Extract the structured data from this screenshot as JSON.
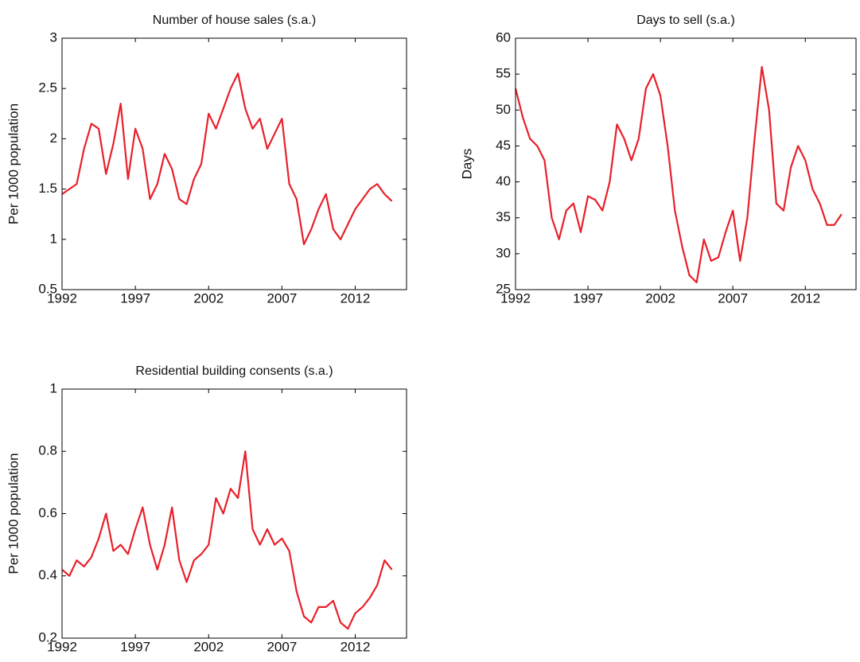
{
  "chart_data": [
    {
      "type": "line",
      "title": "Number of house sales (s.a.)",
      "y_label": "Per 1000 population",
      "color": "#e8202a",
      "x": [
        1992,
        1992.5,
        1993,
        1993.5,
        1994,
        1994.5,
        1995,
        1995.5,
        1996,
        1996.5,
        1997,
        1997.5,
        1998,
        1998.5,
        1999,
        1999.5,
        2000,
        2000.5,
        2001,
        2001.5,
        2002,
        2002.5,
        2003,
        2003.5,
        2004,
        2004.5,
        2005,
        2005.5,
        2006,
        2006.5,
        2007,
        2007.5,
        2008,
        2008.5,
        2009,
        2009.5,
        2010,
        2010.5,
        2011,
        2011.5,
        2012,
        2012.5,
        2013,
        2013.5,
        2014,
        2014.5
      ],
      "values": [
        1.45,
        1.5,
        1.55,
        1.9,
        2.15,
        2.1,
        1.65,
        1.95,
        2.35,
        1.6,
        2.1,
        1.9,
        1.4,
        1.55,
        1.85,
        1.7,
        1.4,
        1.35,
        1.6,
        1.75,
        2.25,
        2.1,
        2.3,
        2.5,
        2.65,
        2.3,
        2.1,
        2.2,
        1.9,
        2.05,
        2.2,
        1.55,
        1.4,
        0.95,
        1.1,
        1.3,
        1.45,
        1.1,
        1.0,
        1.15,
        1.3,
        1.4,
        1.5,
        1.55,
        1.45,
        1.38
      ],
      "xlim": [
        1992,
        2015.5
      ],
      "ylim": [
        0.5,
        3
      ],
      "xticks": [
        1992,
        1997,
        2002,
        2007,
        2012
      ],
      "yticks": [
        0.5,
        1,
        1.5,
        2,
        2.5,
        3
      ]
    },
    {
      "type": "line",
      "title": "Days to sell (s.a.)",
      "y_label": "Days",
      "color": "#e8202a",
      "x": [
        1992,
        1992.5,
        1993,
        1993.5,
        1994,
        1994.5,
        1995,
        1995.5,
        1996,
        1996.5,
        1997,
        1997.5,
        1998,
        1998.5,
        1999,
        1999.5,
        2000,
        2000.5,
        2001,
        2001.5,
        2002,
        2002.5,
        2003,
        2003.5,
        2004,
        2004.5,
        2005,
        2005.5,
        2006,
        2006.5,
        2007,
        2007.5,
        2008,
        2008.5,
        2009,
        2009.5,
        2010,
        2010.5,
        2011,
        2011.5,
        2012,
        2012.5,
        2013,
        2013.5,
        2014,
        2014.5
      ],
      "values": [
        53,
        49,
        46,
        45,
        43,
        35,
        32,
        36,
        37,
        33,
        38,
        37.5,
        36,
        40,
        48,
        46,
        43,
        46,
        53,
        55,
        52,
        45,
        36,
        31,
        27,
        26,
        32,
        29,
        29.5,
        33,
        36,
        29,
        35,
        46,
        56,
        50,
        37,
        36,
        42,
        45,
        43,
        39,
        37,
        34,
        34,
        35.5
      ],
      "xlim": [
        1992,
        2015.5
      ],
      "ylim": [
        25,
        60
      ],
      "xticks": [
        1992,
        1997,
        2002,
        2007,
        2012
      ],
      "yticks": [
        25,
        30,
        35,
        40,
        45,
        50,
        55,
        60
      ]
    },
    {
      "type": "line",
      "title": "Residential building consents (s.a.)",
      "y_label": "Per 1000 population",
      "color": "#e8202a",
      "x": [
        1992,
        1992.5,
        1993,
        1993.5,
        1994,
        1994.5,
        1995,
        1995.5,
        1996,
        1996.5,
        1997,
        1997.5,
        1998,
        1998.5,
        1999,
        1999.5,
        2000,
        2000.5,
        2001,
        2001.5,
        2002,
        2002.5,
        2003,
        2003.5,
        2004,
        2004.5,
        2005,
        2005.5,
        2006,
        2006.5,
        2007,
        2007.5,
        2008,
        2008.5,
        2009,
        2009.5,
        2010,
        2010.5,
        2011,
        2011.5,
        2012,
        2012.5,
        2013,
        2013.5,
        2014,
        2014.5
      ],
      "values": [
        0.42,
        0.4,
        0.45,
        0.43,
        0.46,
        0.52,
        0.6,
        0.48,
        0.5,
        0.47,
        0.55,
        0.62,
        0.5,
        0.42,
        0.5,
        0.62,
        0.45,
        0.38,
        0.45,
        0.47,
        0.5,
        0.65,
        0.6,
        0.68,
        0.65,
        0.8,
        0.55,
        0.5,
        0.55,
        0.5,
        0.52,
        0.48,
        0.35,
        0.27,
        0.25,
        0.3,
        0.3,
        0.32,
        0.25,
        0.23,
        0.28,
        0.3,
        0.33,
        0.37,
        0.45,
        0.42
      ],
      "xlim": [
        1992,
        2015.5
      ],
      "ylim": [
        0.2,
        1
      ],
      "xticks": [
        1992,
        1997,
        2002,
        2007,
        2012
      ],
      "yticks": [
        0.2,
        0.4,
        0.6,
        0.8,
        1
      ]
    }
  ]
}
